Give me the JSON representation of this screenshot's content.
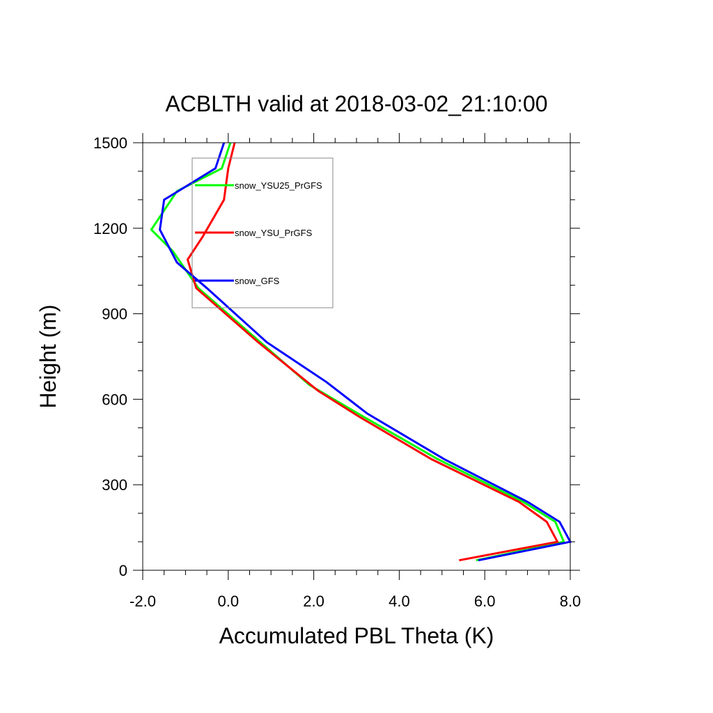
{
  "chart_data": {
    "type": "line",
    "title": "ACBLTH valid at 2018-03-02_21:10:00",
    "xlabel": "Accumulated PBL Theta (K)",
    "ylabel": "Height (m)",
    "xlim": [
      -2.0,
      8.0
    ],
    "ylim": [
      0,
      1500
    ],
    "xticks": [
      -2.0,
      0.0,
      2.0,
      4.0,
      6.0,
      8.0
    ],
    "xtick_labels": [
      "-2.0",
      "0.0",
      "2.0",
      "4.0",
      "6.0",
      "8.0"
    ],
    "yticks": [
      0,
      300,
      600,
      900,
      1200,
      1500
    ],
    "ytick_labels": [
      "0",
      "300",
      "600",
      "900",
      "1200",
      "1500"
    ],
    "grid": false,
    "legend_position": "upper-left",
    "series": [
      {
        "name": "snow_YSU25_PrGFS",
        "color": "#00ff00",
        "x": [
          5.8,
          7.85,
          7.65,
          6.9,
          4.9,
          3.15,
          1.9,
          0.75,
          -0.7,
          -1.3,
          -1.8,
          -1.2,
          -0.15,
          0.05
        ],
        "y": [
          35,
          100,
          170,
          240,
          390,
          540,
          650,
          800,
          990,
          1120,
          1195,
          1330,
          1410,
          1500
        ]
      },
      {
        "name": "snow_YSU_PrGFS",
        "color": "#ff0000",
        "x": [
          5.4,
          7.7,
          7.45,
          6.8,
          4.75,
          3.05,
          2.1,
          0.7,
          -0.75,
          -0.95,
          -0.6,
          -0.1,
          0.0,
          0.15
        ],
        "y": [
          35,
          100,
          170,
          240,
          390,
          540,
          630,
          800,
          990,
          1090,
          1170,
          1300,
          1410,
          1500
        ]
      },
      {
        "name": "snow_GFS",
        "color": "#0000ff",
        "x": [
          5.85,
          8.0,
          7.75,
          7.0,
          5.05,
          3.25,
          2.3,
          0.9,
          -0.5,
          -1.2,
          -1.6,
          -1.5,
          -0.3,
          -0.1
        ],
        "y": [
          35,
          100,
          170,
          240,
          390,
          550,
          660,
          800,
          990,
          1080,
          1195,
          1300,
          1410,
          1500
        ]
      }
    ]
  }
}
